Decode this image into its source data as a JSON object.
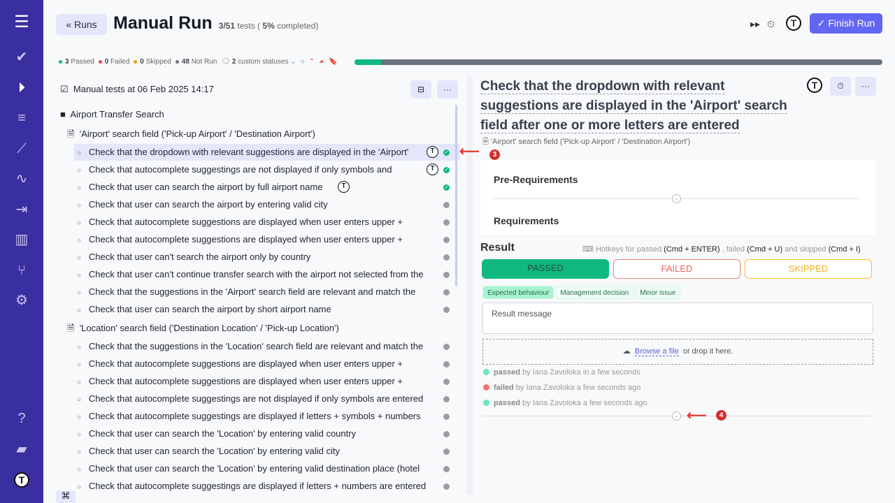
{
  "sidebar": {
    "icons": [
      "menu-icon",
      "check-icon",
      "play-icon",
      "list-check-icon",
      "steps-icon",
      "pulse-icon",
      "import-icon",
      "chart-icon",
      "branch-icon",
      "gear-icon",
      "help-icon",
      "folder-icon",
      "logo-icon"
    ]
  },
  "header": {
    "back_label": "Runs",
    "title": "Manual Run",
    "progress_count": "3/51",
    "progress_tests": "tests (",
    "progress_pct": "5%",
    "progress_completed": "completed)",
    "finish_label": "Finish Run"
  },
  "stats": {
    "passed": "3",
    "passed_label": "Passed",
    "failed": "0",
    "failed_label": "Failed",
    "skipped": "0",
    "skipped_label": "Skipped",
    "notrun": "48",
    "notrun_label": "Not Run",
    "custom": "2",
    "custom_label": "custom statuses",
    "progress_percent": 5,
    "colors": {
      "passed": "#10b981",
      "failed": "#ef4444",
      "skipped": "#f59e0b",
      "notrun": "#6b7280"
    }
  },
  "left": {
    "title": "Manual tests at 06 Feb 2025 14:17",
    "folder": "Airport Transfer Search",
    "suites": [
      {
        "name": "'Airport' search field ('Pick-up Airport' / 'Destination Airport')",
        "tests": [
          {
            "t": "Check that the dropdown with relevant suggestions are displayed in the 'Airport'",
            "s": "passed",
            "logo": true
          },
          {
            "t": "Check that autocomplete suggestings are not displayed if only symbols and",
            "s": "passed",
            "logo": true
          },
          {
            "t": "Check that user can search the airport by full airport name",
            "s": "passed",
            "logo": true
          },
          {
            "t": "Check that user can search the airport by entering valid city",
            "s": "notrun"
          },
          {
            "t": "Check that autocomplete suggestions are displayed when user enters upper +",
            "s": "notrun"
          },
          {
            "t": "Check that autocomplete suggestions are displayed when user enters upper +",
            "s": "notrun"
          },
          {
            "t": "Check that user can't search the airport only by country",
            "s": "notrun"
          },
          {
            "t": "Check that user can't continue transfer search with the airport not selected from the",
            "s": "notrun"
          },
          {
            "t": "Check that the suggestions in the 'Airport' search field are relevant and match the",
            "s": "notrun"
          },
          {
            "t": "Check that user can search the airport by short airport name",
            "s": "notrun"
          }
        ]
      },
      {
        "name": "'Location' search field ('Destination Location' / 'Pick-up Location')",
        "tests": [
          {
            "t": "Check that the suggestions in the 'Location' search field are relevant and match the",
            "s": "notrun"
          },
          {
            "t": "Check that autocomplete suggestions are displayed when user enters upper +",
            "s": "notrun"
          },
          {
            "t": "Check that autocomplete suggestions are displayed when user enters upper +",
            "s": "notrun"
          },
          {
            "t": "Check that autocomplete suggestings are not displayed if only symbols are entered",
            "s": "notrun"
          },
          {
            "t": "Check that autocomplete suggestings are displayed if letters + symbols + numbers",
            "s": "notrun"
          },
          {
            "t": "Check that user can search the 'Location' by entering valid country",
            "s": "notrun"
          },
          {
            "t": "Check that user can search the 'Location' by entering valid city",
            "s": "notrun"
          },
          {
            "t": "Check that user can search the 'Location' by entering valid destination place (hotel",
            "s": "notrun"
          },
          {
            "t": "Check that autocomplete suggestings are displayed if letters + numbers are entered",
            "s": "notrun"
          }
        ]
      }
    ]
  },
  "case": {
    "title": "Check that the dropdown with relevant suggestions are displayed in the 'Airport' search field after one or more letters are entered",
    "suite": "'Airport' search field ('Pick-up Airport' / 'Destination Airport')",
    "pre": "Pre-Requirements",
    "req": "Requirements"
  },
  "result": {
    "heading": "Result",
    "hk1": "Hotkeys for passed",
    "hk1k": "(Cmd + ENTER)",
    "hk2": ", failed",
    "hk2k": "(Cmd + U)",
    "hk3": "and skipped",
    "hk3k": "(Cmd + I)",
    "passed": "PASSED",
    "failed": "FAILED",
    "skipped": "SKIPPED",
    "tags": [
      "Expected behaviour",
      "Management decision",
      "Minor issue"
    ],
    "message_placeholder": "Result message",
    "browse": "Browse a file",
    "drop": "or drop it here.",
    "history": [
      {
        "status": "passed",
        "text": "by Iana Zavoloka in a few seconds"
      },
      {
        "status": "failed",
        "text": "by Iana Zavoloka a few seconds ago"
      },
      {
        "status": "passed",
        "text": "by Iana Zavoloka a few seconds ago"
      }
    ]
  },
  "annotations": [
    "3",
    "4"
  ]
}
